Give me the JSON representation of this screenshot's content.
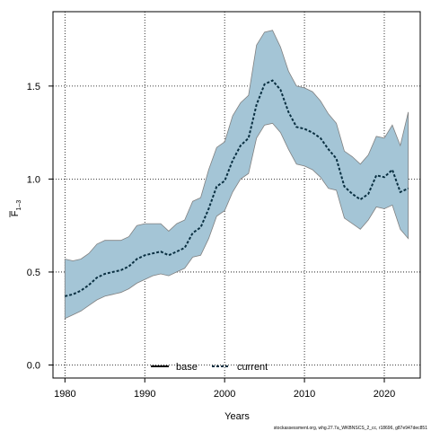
{
  "chart_data": {
    "type": "line",
    "xlabel": "Years",
    "ylabel_main": "F",
    "ylabel_sub": "1–3",
    "xlim": [
      1978.5,
      2024.5
    ],
    "ylim": [
      -0.07,
      1.9
    ],
    "x_ticks": [
      1980,
      1990,
      2000,
      2010,
      2020
    ],
    "y_ticks": [
      0.0,
      0.5,
      1.0,
      1.5
    ],
    "grid": true,
    "legend_position": "bottom-center",
    "legend": [
      {
        "label": "base",
        "style": "solid"
      },
      {
        "label": "current",
        "style": "dashed"
      }
    ],
    "x": [
      1980,
      1981,
      1982,
      1983,
      1984,
      1985,
      1986,
      1987,
      1988,
      1989,
      1990,
      1991,
      1992,
      1993,
      1994,
      1995,
      1996,
      1997,
      1998,
      1999,
      2000,
      2001,
      2002,
      2003,
      2004,
      2005,
      2006,
      2007,
      2008,
      2009,
      2010,
      2011,
      2012,
      2013,
      2014,
      2015,
      2016,
      2017,
      2018,
      2019,
      2020,
      2021,
      2022,
      2023
    ],
    "series": [
      {
        "name": "current",
        "values": [
          0.37,
          0.38,
          0.4,
          0.43,
          0.47,
          0.49,
          0.5,
          0.51,
          0.53,
          0.57,
          0.59,
          0.6,
          0.61,
          0.59,
          0.61,
          0.63,
          0.71,
          0.74,
          0.84,
          0.96,
          0.99,
          1.1,
          1.18,
          1.22,
          1.4,
          1.51,
          1.53,
          1.48,
          1.36,
          1.28,
          1.27,
          1.25,
          1.22,
          1.16,
          1.11,
          0.96,
          0.92,
          0.89,
          0.92,
          1.02,
          1.01,
          1.05,
          0.93,
          0.95
        ],
        "lower": [
          0.25,
          0.27,
          0.29,
          0.32,
          0.35,
          0.37,
          0.38,
          0.39,
          0.41,
          0.44,
          0.46,
          0.48,
          0.49,
          0.48,
          0.5,
          0.52,
          0.58,
          0.59,
          0.68,
          0.8,
          0.83,
          0.93,
          1.0,
          1.03,
          1.22,
          1.29,
          1.3,
          1.25,
          1.16,
          1.08,
          1.07,
          1.05,
          1.01,
          0.95,
          0.94,
          0.79,
          0.76,
          0.73,
          0.78,
          0.85,
          0.84,
          0.86,
          0.73,
          0.68
        ],
        "upper": [
          0.57,
          0.56,
          0.57,
          0.6,
          0.65,
          0.67,
          0.67,
          0.67,
          0.69,
          0.75,
          0.76,
          0.76,
          0.76,
          0.72,
          0.76,
          0.78,
          0.88,
          0.9,
          1.05,
          1.17,
          1.2,
          1.34,
          1.41,
          1.45,
          1.72,
          1.79,
          1.8,
          1.71,
          1.58,
          1.5,
          1.49,
          1.47,
          1.42,
          1.35,
          1.3,
          1.15,
          1.12,
          1.08,
          1.13,
          1.23,
          1.22,
          1.29,
          1.18,
          1.36
        ]
      }
    ]
  },
  "colors": {
    "band_fill": "#a4c5d6",
    "band_stroke": "#808080",
    "current_line": "#0a3042",
    "base_line": "#000000",
    "grid": "#000000"
  },
  "footer": "stockassessment.org, whg.27.7a_WKBNSCS_2_cc, r18696, g87e947dec851"
}
